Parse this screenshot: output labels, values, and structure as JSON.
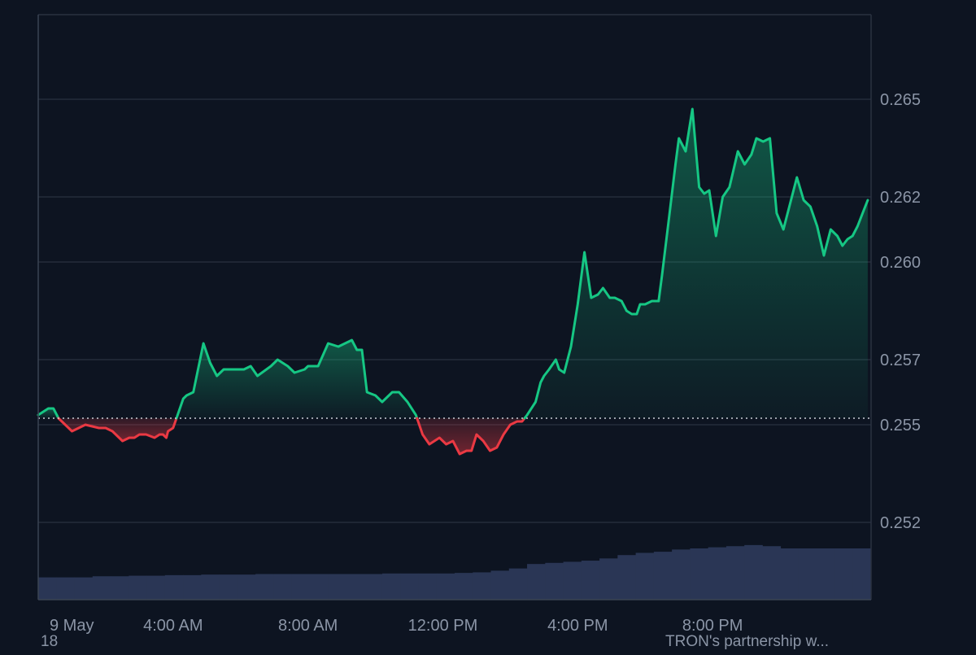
{
  "chart_data": {
    "type": "line",
    "title": "",
    "xlabel": "",
    "ylabel": "",
    "x_ticks": [
      "9 May",
      "4:00 AM",
      "8:00 AM",
      "12:00 PM",
      "4:00 PM",
      "8:00 PM"
    ],
    "y_ticks": [
      "0.252",
      "0.255",
      "0.257",
      "0.260",
      "0.262",
      "0.265"
    ],
    "ylim": [
      0.25,
      0.2668
    ],
    "xlim_hours": [
      0,
      24.7
    ],
    "baseline": 0.2552,
    "grid": true,
    "legend": "none",
    "colors": {
      "up": "#16c784",
      "down": "#ea3943",
      "volume": "#2a3655",
      "grid": "#2a3241",
      "tick_label": "#8b95a6",
      "background": "#0d1421"
    },
    "series": [
      {
        "x": [
          0.0,
          0.3,
          0.45,
          0.6,
          0.8,
          1.0,
          1.4,
          1.8,
          2.0,
          2.2,
          2.5,
          2.7,
          2.85,
          3.0,
          3.2,
          3.45,
          3.6,
          3.7,
          3.8,
          3.85,
          4.0,
          4.1,
          4.3,
          4.4,
          4.6,
          4.9,
          5.1,
          5.3,
          5.5,
          5.7,
          5.9,
          6.1,
          6.3,
          6.5,
          6.9,
          7.1,
          7.4,
          7.6,
          7.9,
          8.0,
          8.3,
          8.6,
          8.9,
          9.3,
          9.45,
          9.6,
          9.75,
          10.0,
          10.2,
          10.5,
          10.7,
          10.95,
          11.2,
          11.4,
          11.6,
          11.9,
          12.1,
          12.3,
          12.5,
          12.7,
          12.85,
          13.0,
          13.2,
          13.4,
          13.6,
          13.8,
          14.0,
          14.2,
          14.35,
          14.5,
          14.75,
          14.9,
          15.0,
          15.15,
          15.35,
          15.45,
          15.6,
          15.8,
          16.0,
          16.2,
          16.4,
          16.6,
          16.75,
          16.95,
          17.1,
          17.3,
          17.45,
          17.6,
          17.75,
          17.85,
          18.0,
          18.2,
          18.4,
          18.5,
          18.7,
          18.9,
          19.0,
          19.2,
          19.4,
          19.6,
          19.75,
          19.9,
          20.1,
          20.3,
          20.5,
          20.75,
          20.95,
          21.15,
          21.3,
          21.5,
          21.7,
          21.9,
          22.1,
          22.3,
          22.5,
          22.7,
          22.9,
          23.1,
          23.3,
          23.5,
          23.7,
          23.85,
          24.0,
          24.15,
          24.3,
          24.45,
          24.6
        ],
        "values": [
          0.2553,
          0.2555,
          0.2555,
          0.2552,
          0.255,
          0.2548,
          0.255,
          0.2549,
          0.2549,
          0.2548,
          0.2545,
          0.2546,
          0.2546,
          0.2547,
          0.2547,
          0.2546,
          0.2547,
          0.2547,
          0.2546,
          0.2548,
          0.2549,
          0.2552,
          0.2558,
          0.2559,
          0.256,
          0.2575,
          0.2569,
          0.2565,
          0.2567,
          0.2567,
          0.2567,
          0.2567,
          0.2568,
          0.2565,
          0.2568,
          0.257,
          0.2568,
          0.2566,
          0.2567,
          0.2568,
          0.2568,
          0.2575,
          0.2574,
          0.2576,
          0.2573,
          0.2573,
          0.256,
          0.2559,
          0.2557,
          0.256,
          0.256,
          0.2557,
          0.2553,
          0.2547,
          0.2544,
          0.2546,
          0.2544,
          0.2545,
          0.2541,
          0.2542,
          0.2542,
          0.2547,
          0.2545,
          0.2542,
          0.2543,
          0.2547,
          0.255,
          0.2551,
          0.2551,
          0.2553,
          0.2557,
          0.2563,
          0.2565,
          0.2567,
          0.257,
          0.2567,
          0.2566,
          0.2574,
          0.2587,
          0.2603,
          0.2589,
          0.259,
          0.2592,
          0.2589,
          0.2589,
          0.2588,
          0.2585,
          0.2584,
          0.2584,
          0.2587,
          0.2587,
          0.2588,
          0.2588,
          0.2596,
          0.2613,
          0.263,
          0.2638,
          0.2634,
          0.2647,
          0.2623,
          0.2621,
          0.2622,
          0.2608,
          0.262,
          0.2623,
          0.2634,
          0.263,
          0.2633,
          0.2638,
          0.2637,
          0.2638,
          0.2615,
          0.261,
          0.2618,
          0.2626,
          0.2619,
          0.2617,
          0.2611,
          0.2602,
          0.261,
          0.2608,
          0.2605,
          0.2607,
          0.2608,
          0.2611,
          0.2615,
          0.2619
        ]
      },
      {
        "name": "",
        "type": "bar",
        "values": [
          0.2,
          0.2,
          0.2,
          0.21,
          0.21,
          0.215,
          0.215,
          0.22,
          0.22,
          0.225,
          0.225,
          0.225,
          0.23,
          0.23,
          0.23,
          0.23,
          0.23,
          0.23,
          0.23,
          0.235,
          0.235,
          0.235,
          0.235,
          0.24,
          0.245,
          0.26,
          0.28,
          0.32,
          0.33,
          0.34,
          0.35,
          0.37,
          0.4,
          0.42,
          0.43,
          0.45,
          0.46,
          0.47,
          0.48,
          0.49,
          0.48,
          0.46,
          0.46,
          0.46,
          0.46,
          0.46
        ]
      }
    ]
  },
  "footer": {
    "left_text": "18",
    "right_text": "TRON's partnership w..."
  }
}
